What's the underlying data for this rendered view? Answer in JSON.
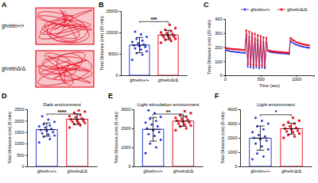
{
  "chart_data": [
    {
      "panel": "A",
      "type": "image",
      "labels": [
        "ghrelin+/+",
        "ghrelinΔ/Δ"
      ],
      "color": "#e8182c"
    },
    {
      "panel": "B",
      "type": "bar",
      "y_label": "Total Distance (cm) (20 min)",
      "categories": [
        "ghrelin+/+",
        "ghrelinΔ/Δ"
      ],
      "values": [
        7050,
        9420
      ],
      "errors": [
        1800,
        1100
      ],
      "points": [
        [
          3600,
          4800,
          5200,
          5600,
          6000,
          6300,
          6600,
          6800,
          7000,
          7200,
          7500,
          7800,
          8100,
          8500,
          9000,
          9600,
          10200
        ],
        [
          7600,
          8000,
          8300,
          8500,
          8700,
          8900,
          9000,
          9200,
          9400,
          9600,
          9800,
          10000,
          10300,
          10600,
          11000,
          11800
        ]
      ],
      "colors": [
        "#2c3bd9",
        "#e8182c"
      ],
      "ylim": [
        0,
        15000
      ],
      "yticks": [
        0,
        5000,
        10000,
        15000
      ],
      "annotation": "***"
    },
    {
      "panel": "C",
      "type": "line",
      "x_label": "Time (sec)",
      "y_label": "Total Distance (cm) (20 min)",
      "x": [
        0,
        20,
        40,
        60,
        80,
        100,
        120,
        140,
        160,
        180,
        200,
        220,
        240,
        260,
        280,
        300,
        320,
        340,
        360,
        380,
        400,
        420,
        440,
        460,
        480,
        500,
        520,
        540,
        560,
        580,
        600,
        620,
        640,
        660,
        680,
        700,
        720,
        740,
        760,
        780,
        800,
        820,
        840,
        860,
        880,
        900,
        920,
        940,
        960,
        980,
        1000,
        1020,
        1040,
        1060,
        1080,
        1100,
        1120,
        1140,
        1160,
        1180
      ],
      "series": [
        {
          "name": "ghrelin+/+",
          "color": "#2c3bd9",
          "marker": "circle",
          "values": [
            182,
            178,
            175,
            172,
            170,
            170,
            168,
            166,
            165,
            164,
            163,
            162,
            160,
            160,
            158,
            290,
            60,
            270,
            55,
            280,
            50,
            260,
            55,
            250,
            50,
            245,
            55,
            235,
            50,
            230,
            175,
            168,
            165,
            163,
            162,
            160,
            160,
            158,
            157,
            156,
            155,
            155,
            154,
            153,
            152,
            150,
            245,
            235,
            228,
            222,
            218,
            214,
            210,
            207,
            204,
            202,
            200,
            198,
            196,
            195
          ]
        },
        {
          "name": "ghrelinΔ/Δ",
          "color": "#e8182c",
          "marker": "square",
          "values": [
            195,
            193,
            190,
            190,
            188,
            187,
            186,
            185,
            185,
            184,
            183,
            182,
            181,
            180,
            180,
            320,
            80,
            310,
            75,
            300,
            70,
            295,
            70,
            285,
            65,
            280,
            70,
            270,
            65,
            265,
            180,
            175,
            172,
            170,
            170,
            168,
            168,
            166,
            165,
            165,
            164,
            163,
            162,
            162,
            160,
            158,
            265,
            255,
            248,
            242,
            236,
            232,
            228,
            225,
            222,
            220,
            218,
            216,
            214,
            212
          ]
        }
      ],
      "xlim": [
        0,
        1250
      ],
      "xticks": [
        0,
        500,
        1000
      ],
      "ylim": [
        0,
        400
      ],
      "yticks": [
        0,
        100,
        200,
        300,
        400
      ],
      "legend": "top-right"
    },
    {
      "panel": "D",
      "type": "bar",
      "title": "Dark environment",
      "y_label": "Total Distance (cm) (5 min)",
      "categories": [
        "ghrelin+/+",
        "ghrelinΔ/Δ"
      ],
      "values": [
        1610,
        2070
      ],
      "errors": [
        290,
        230
      ],
      "points": [
        [
          1050,
          1200,
          1300,
          1350,
          1400,
          1450,
          1500,
          1550,
          1600,
          1650,
          1700,
          1750,
          1800,
          1850,
          1950,
          2050,
          2200
        ],
        [
          1700,
          1800,
          1850,
          1900,
          1900,
          1950,
          2000,
          2000,
          2050,
          2100,
          2150,
          2200,
          2250,
          2350,
          2400,
          2450
        ]
      ],
      "colors": [
        "#2c3bd9",
        "#e8182c"
      ],
      "ylim": [
        0,
        2500
      ],
      "yticks": [
        0,
        500,
        1000,
        1500,
        2000,
        2500
      ],
      "annotation": "****"
    },
    {
      "panel": "E",
      "type": "bar",
      "title": "Light stimulation environment",
      "y_label": "Total Distance (cm) (5 min)",
      "categories": [
        "ghrelin+/+",
        "ghrelinΔ/Δ"
      ],
      "values": [
        1950,
        2380
      ],
      "errors": [
        620,
        270
      ],
      "points": [
        [
          700,
          1000,
          1200,
          1400,
          1600,
          1700,
          1800,
          1900,
          2000,
          2100,
          2200,
          2300,
          2400,
          2500,
          2600,
          2800,
          2950
        ],
        [
          1900,
          2000,
          2100,
          2150,
          2200,
          2250,
          2300,
          2350,
          2400,
          2450,
          2500,
          2550,
          2600,
          2700,
          2800,
          2900
        ]
      ],
      "colors": [
        "#2c3bd9",
        "#e8182c"
      ],
      "ylim": [
        0,
        3000
      ],
      "yticks": [
        0,
        1000,
        2000,
        3000
      ],
      "annotation": "**"
    },
    {
      "panel": "F",
      "type": "bar",
      "title": "Light environment",
      "y_label": "Total Distance (cm) (5 min)",
      "categories": [
        "ghrelin+/+",
        "ghrelinΔ/Δ"
      ],
      "values": [
        1980,
        2640
      ],
      "errors": [
        850,
        380
      ],
      "points": [
        [
          500,
          700,
          900,
          1200,
          1400,
          1600,
          1800,
          1900,
          2000,
          2100,
          2200,
          2400,
          2600,
          2800,
          3000,
          3200,
          3400
        ],
        [
          2000,
          2100,
          2200,
          2300,
          2400,
          2450,
          2500,
          2600,
          2650,
          2700,
          2800,
          2900,
          3000,
          3100,
          3200,
          3400
        ]
      ],
      "colors": [
        "#2c3bd9",
        "#e8182c"
      ],
      "ylim": [
        0,
        4000
      ],
      "yticks": [
        0,
        1000,
        2000,
        3000,
        4000
      ],
      "annotation": "*"
    }
  ]
}
